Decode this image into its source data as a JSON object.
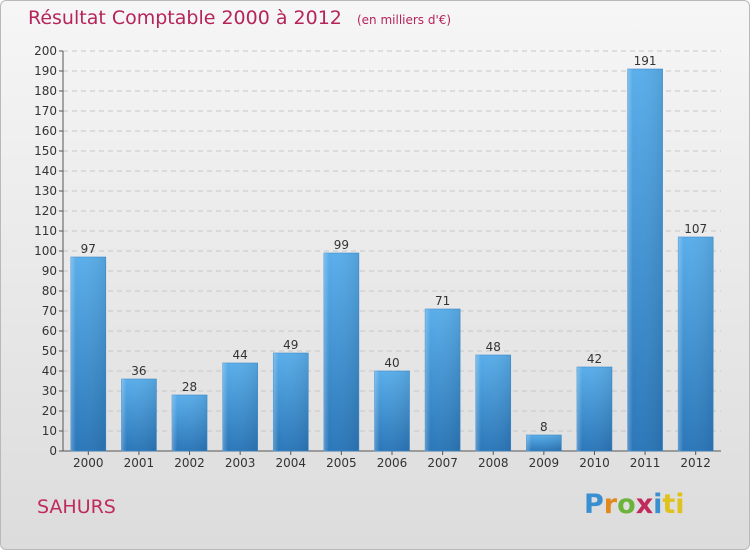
{
  "chart_data": {
    "type": "bar",
    "title": "Résultat Comptable 2000 à 2012",
    "subtitle": "(en milliers d'€)",
    "xlabel": "",
    "ylabel": "",
    "categories": [
      "2000",
      "2001",
      "2002",
      "2003",
      "2004",
      "2005",
      "2006",
      "2007",
      "2008",
      "2009",
      "2010",
      "2011",
      "2012"
    ],
    "values": [
      97,
      36,
      28,
      44,
      49,
      99,
      40,
      71,
      48,
      8,
      42,
      191,
      107
    ],
    "ylim": [
      0,
      200
    ],
    "yticks": [
      0,
      10,
      20,
      30,
      40,
      50,
      60,
      70,
      80,
      90,
      100,
      110,
      120,
      130,
      140,
      150,
      160,
      170,
      180,
      190,
      200
    ],
    "grid": true,
    "bar_color": "#4a9de0",
    "bar_color_dark": "#2a74b8"
  },
  "place_name": "SAHURS",
  "brand": {
    "letters": [
      "P",
      "r",
      "o",
      "x",
      "i",
      "ti"
    ]
  }
}
